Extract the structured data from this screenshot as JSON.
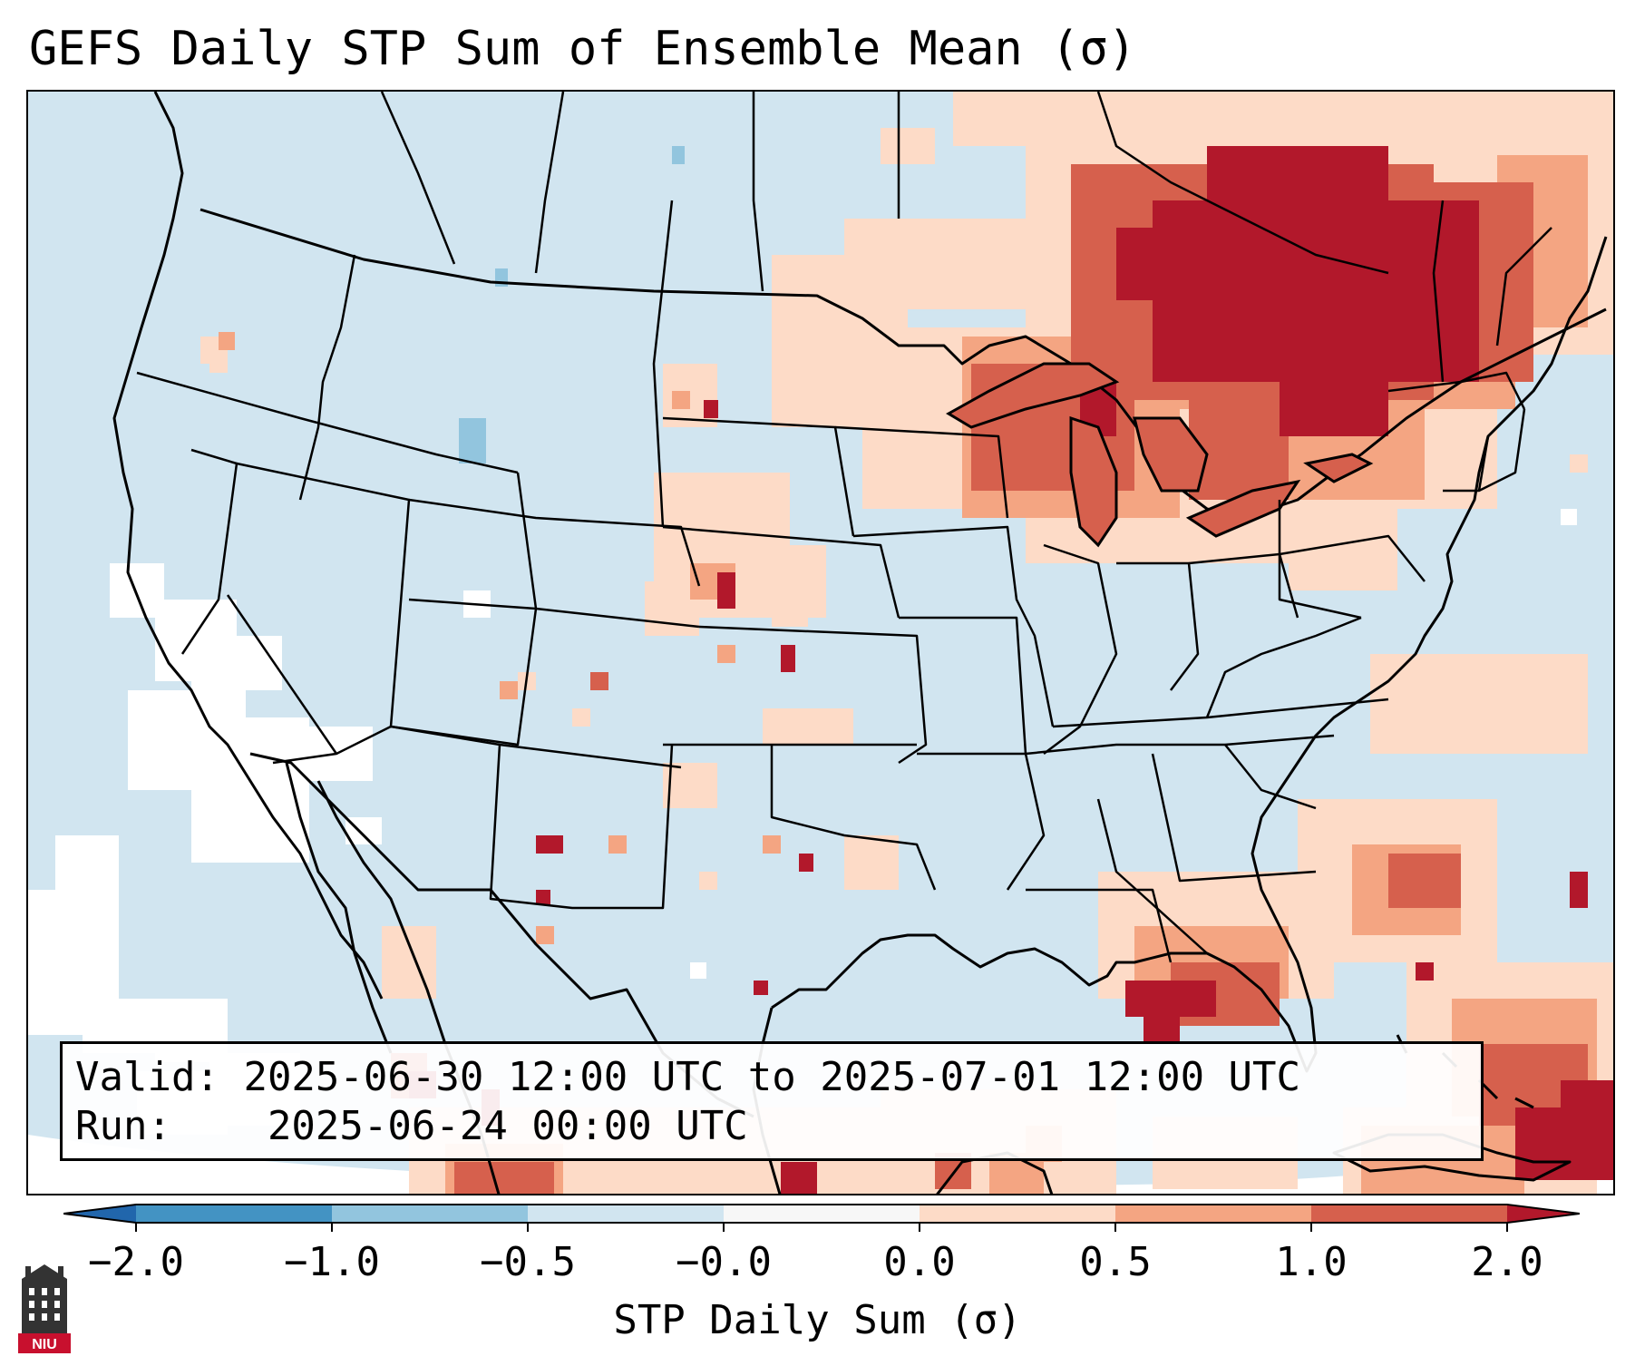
{
  "title": "GEFS Daily STP Sum of Ensemble Mean (σ)",
  "info": {
    "valid_label": "Valid:",
    "valid_value": "2025-06-30 12:00 UTC to 2025-07-01 12:00 UTC",
    "run_label": "Run:",
    "run_value": "2025-06-24 00:00 UTC"
  },
  "colorbar": {
    "label": "STP Daily Sum (σ)",
    "ticks": [
      "−2.0",
      "−1.0",
      "−0.5",
      "−0.0",
      "0.0",
      "0.5",
      "1.0",
      "2.0"
    ],
    "colors": [
      "#2166ac",
      "#4393c3",
      "#92c5de",
      "#d1e5f0",
      "#f7f7f7",
      "#fddbc7",
      "#f4a582",
      "#d6604d",
      "#b2182b"
    ]
  },
  "logo": {
    "text": "NIU"
  },
  "map": {
    "background_color": "#d1e5f0",
    "outside_color": "#ffffff",
    "border_color": "#000000"
  }
}
